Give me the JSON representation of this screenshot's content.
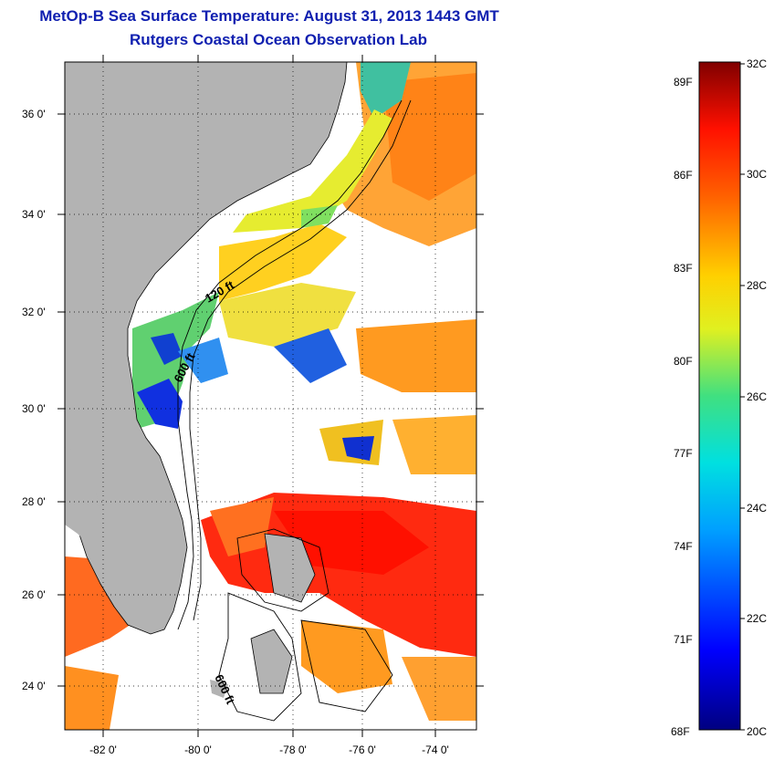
{
  "header": {
    "title": "MetOp-B Sea Surface Temperature:  August 31, 2013 1443 GMT",
    "subtitle": "Rutgers Coastal Ocean Observation Lab"
  },
  "map": {
    "lon_range": [
      -83,
      -73
    ],
    "lat_range": [
      23,
      37
    ],
    "lat_ticks": [
      "36 0'",
      "34 0'",
      "32 0'",
      "30 0'",
      "28 0'",
      "26 0'",
      "24 0'"
    ],
    "lon_ticks": [
      "-82 0'",
      "-80 0'",
      "-78 0'",
      "-76 0'",
      "-74 0'"
    ],
    "contour_labels": [
      "120 ft",
      "600 ft",
      "600 ft"
    ],
    "colors": {
      "land": "#b3b3b3",
      "cloud": "#ffffff"
    }
  },
  "colorbar": {
    "fahrenheit_labels": [
      "89F",
      "86F",
      "83F",
      "80F",
      "77F",
      "74F",
      "71F",
      "68F"
    ],
    "celsius_labels": [
      "32C",
      "30C",
      "28C",
      "26C",
      "24C",
      "22C",
      "20C"
    ],
    "range_c": [
      20,
      32
    ]
  }
}
